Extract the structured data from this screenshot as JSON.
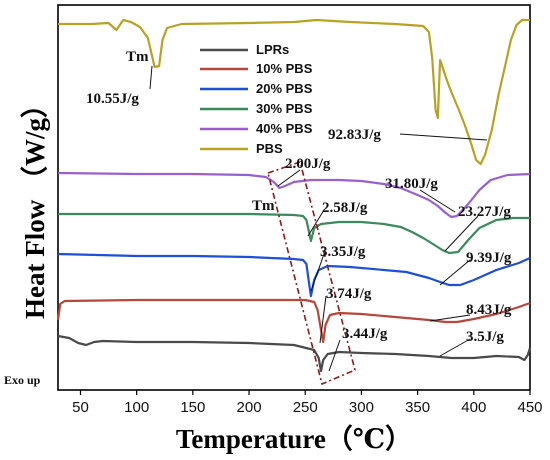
{
  "chart_data": {
    "type": "line",
    "xlabel": "Temperature（℃）",
    "ylabel": "Heat Flow （W/g）",
    "xlim": [
      30,
      450
    ],
    "xticks": [
      50,
      100,
      150,
      200,
      250,
      300,
      350,
      400,
      450
    ],
    "y_ticks_shown": false,
    "legend_position": "top-left",
    "series": [
      {
        "name": "LPRs",
        "color": "#4a4a4a",
        "points": [
          [
            30,
            336
          ],
          [
            40,
            338
          ],
          [
            48,
            343
          ],
          [
            55,
            345
          ],
          [
            62,
            342
          ],
          [
            70,
            341
          ],
          [
            100,
            342
          ],
          [
            150,
            342
          ],
          [
            200,
            343
          ],
          [
            240,
            345
          ],
          [
            258,
            350
          ],
          [
            262,
            358
          ],
          [
            264,
            371
          ],
          [
            266,
            360
          ],
          [
            270,
            354
          ],
          [
            280,
            352
          ],
          [
            300,
            353
          ],
          [
            330,
            354
          ],
          [
            360,
            356
          ],
          [
            380,
            358
          ],
          [
            400,
            358
          ],
          [
            420,
            356
          ],
          [
            440,
            357
          ],
          [
            445,
            360
          ],
          [
            448,
            355
          ],
          [
            450,
            348
          ]
        ]
      },
      {
        "name": "10% PBS",
        "color": "#b5473b",
        "points": [
          [
            30,
            320
          ],
          [
            32,
            304
          ],
          [
            36,
            301
          ],
          [
            100,
            300
          ],
          [
            200,
            300
          ],
          [
            250,
            300
          ],
          [
            258,
            302
          ],
          [
            261,
            310
          ],
          [
            264,
            330
          ],
          [
            266,
            342
          ],
          [
            268,
            325
          ],
          [
            272,
            315
          ],
          [
            280,
            313
          ],
          [
            300,
            314
          ],
          [
            320,
            316
          ],
          [
            340,
            318
          ],
          [
            360,
            320
          ],
          [
            375,
            322
          ],
          [
            385,
            322
          ],
          [
            400,
            319
          ],
          [
            420,
            314
          ],
          [
            440,
            307
          ],
          [
            450,
            303
          ]
        ]
      },
      {
        "name": "20% PBS",
        "color": "#1e4fd6",
        "points": [
          [
            30,
            254
          ],
          [
            100,
            256
          ],
          [
            150,
            256
          ],
          [
            200,
            257
          ],
          [
            240,
            259
          ],
          [
            248,
            260
          ],
          [
            251,
            264
          ],
          [
            253,
            280
          ],
          [
            255,
            296
          ],
          [
            258,
            280
          ],
          [
            262,
            270
          ],
          [
            270,
            266
          ],
          [
            290,
            267
          ],
          [
            320,
            270
          ],
          [
            340,
            272
          ],
          [
            350,
            275
          ],
          [
            360,
            278
          ],
          [
            370,
            282
          ],
          [
            378,
            285
          ],
          [
            388,
            285
          ],
          [
            400,
            280
          ],
          [
            420,
            270
          ],
          [
            440,
            263
          ],
          [
            450,
            258
          ]
        ]
      },
      {
        "name": "30% PBS",
        "color": "#3a8a5e",
        "points": [
          [
            30,
            214
          ],
          [
            100,
            214
          ],
          [
            150,
            214
          ],
          [
            200,
            214
          ],
          [
            240,
            215
          ],
          [
            248,
            216
          ],
          [
            251,
            220
          ],
          [
            253,
            230
          ],
          [
            255,
            241
          ],
          [
            258,
            228
          ],
          [
            264,
            224
          ],
          [
            280,
            222
          ],
          [
            300,
            222
          ],
          [
            320,
            224
          ],
          [
            335,
            227
          ],
          [
            345,
            232
          ],
          [
            355,
            238
          ],
          [
            365,
            245
          ],
          [
            372,
            250
          ],
          [
            378,
            253
          ],
          [
            386,
            252
          ],
          [
            395,
            240
          ],
          [
            405,
            228
          ],
          [
            420,
            220
          ],
          [
            435,
            218
          ],
          [
            450,
            218
          ]
        ]
      },
      {
        "name": "40% PBS",
        "color": "#9a5fcf",
        "points": [
          [
            30,
            173
          ],
          [
            100,
            174
          ],
          [
            150,
            174
          ],
          [
            200,
            175
          ],
          [
            215,
            177
          ],
          [
            222,
            182
          ],
          [
            227,
            188
          ],
          [
            232,
            186
          ],
          [
            240,
            182
          ],
          [
            255,
            180
          ],
          [
            280,
            180
          ],
          [
            300,
            181
          ],
          [
            320,
            184
          ],
          [
            335,
            188
          ],
          [
            350,
            195
          ],
          [
            360,
            200
          ],
          [
            368,
            206
          ],
          [
            375,
            213
          ],
          [
            380,
            217
          ],
          [
            385,
            216
          ],
          [
            395,
            204
          ],
          [
            405,
            190
          ],
          [
            415,
            180
          ],
          [
            430,
            175
          ],
          [
            450,
            174
          ]
        ]
      },
      {
        "name": "PBS",
        "color": "#b8a224",
        "points": [
          [
            30,
            24
          ],
          [
            60,
            24
          ],
          [
            75,
            23
          ],
          [
            82,
            30
          ],
          [
            88,
            20
          ],
          [
            95,
            22
          ],
          [
            103,
            27
          ],
          [
            110,
            38
          ],
          [
            116,
            67
          ],
          [
            120,
            66
          ],
          [
            123,
            40
          ],
          [
            127,
            28
          ],
          [
            140,
            24
          ],
          [
            200,
            23
          ],
          [
            240,
            22
          ],
          [
            260,
            20
          ],
          [
            290,
            22
          ],
          [
            330,
            24
          ],
          [
            355,
            26
          ],
          [
            360,
            32
          ],
          [
            363,
            58
          ],
          [
            366,
            110
          ],
          [
            368,
            118
          ],
          [
            370,
            60
          ],
          [
            373,
            70
          ],
          [
            376,
            80
          ],
          [
            380,
            92
          ],
          [
            386,
            108
          ],
          [
            392,
            125
          ],
          [
            398,
            145
          ],
          [
            402,
            160
          ],
          [
            406,
            164
          ],
          [
            410,
            155
          ],
          [
            416,
            130
          ],
          [
            422,
            95
          ],
          [
            428,
            65
          ],
          [
            433,
            40
          ],
          [
            438,
            25
          ],
          [
            443,
            20
          ],
          [
            450,
            20
          ]
        ]
      }
    ],
    "annotations": [
      {
        "text": "Tm",
        "series": "PBS"
      },
      {
        "text": "10.55J/g",
        "series": "PBS"
      },
      {
        "text": "92.83J/g",
        "series": "PBS"
      },
      {
        "text": "2.00J/g",
        "series": "40% PBS"
      },
      {
        "text": "31.80J/g",
        "series": "40% PBS"
      },
      {
        "text": "Tm",
        "series": "30% PBS"
      },
      {
        "text": "2.58J/g",
        "series": "30% PBS"
      },
      {
        "text": "23.27J/g",
        "series": "30% PBS"
      },
      {
        "text": "3.35J/g",
        "series": "20% PBS"
      },
      {
        "text": "9.39J/g",
        "series": "20% PBS"
      },
      {
        "text": "3.74J/g",
        "series": "10% PBS"
      },
      {
        "text": "8.43J/g",
        "series": "10% PBS"
      },
      {
        "text": "3.44J/g",
        "series": "LPRs"
      },
      {
        "text": "3.5J/g",
        "series": "LPRs"
      },
      {
        "text": "Exo up",
        "series": ""
      }
    ]
  }
}
